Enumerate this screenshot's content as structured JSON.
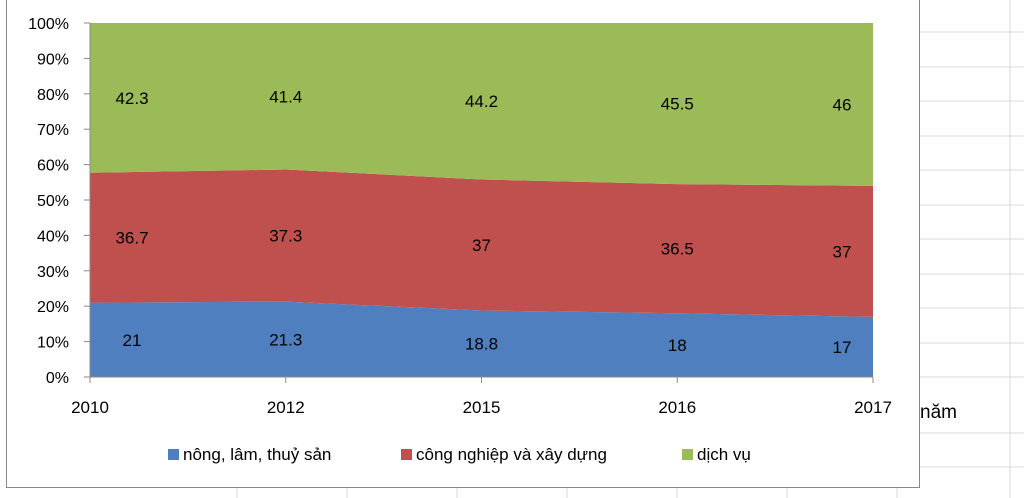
{
  "chart_data": {
    "type": "area",
    "stacked": true,
    "percent": true,
    "categories": [
      "2010",
      "2012",
      "2015",
      "2016",
      "2017"
    ],
    "series": [
      {
        "name": "nông, lâm, thuỷ sản",
        "color": "#4f7fbf",
        "values": [
          21,
          21.3,
          18.8,
          18,
          17
        ],
        "labels": [
          "21",
          "21.3",
          "18.8",
          "18",
          "17"
        ]
      },
      {
        "name": "công nghiệp và xây dựng",
        "color": "#c0504d",
        "values": [
          36.7,
          37.3,
          37,
          36.5,
          37
        ],
        "labels": [
          "36.7",
          "37.3",
          "37",
          "36.5",
          "37"
        ]
      },
      {
        "name": "dịch vụ",
        "color": "#9bbb59",
        "values": [
          42.3,
          41.4,
          44.2,
          45.5,
          46
        ],
        "labels": [
          "42.3",
          "41.4",
          "44.2",
          "45.5",
          "46"
        ]
      }
    ],
    "yticks": [
      "0%",
      "10%",
      "20%",
      "30%",
      "40%",
      "50%",
      "60%",
      "70%",
      "80%",
      "90%",
      "100%"
    ],
    "ylim": [
      0,
      100
    ],
    "xlabel": "năm",
    "ylabel": "",
    "title": "",
    "grid": false,
    "legend_position": "bottom"
  }
}
